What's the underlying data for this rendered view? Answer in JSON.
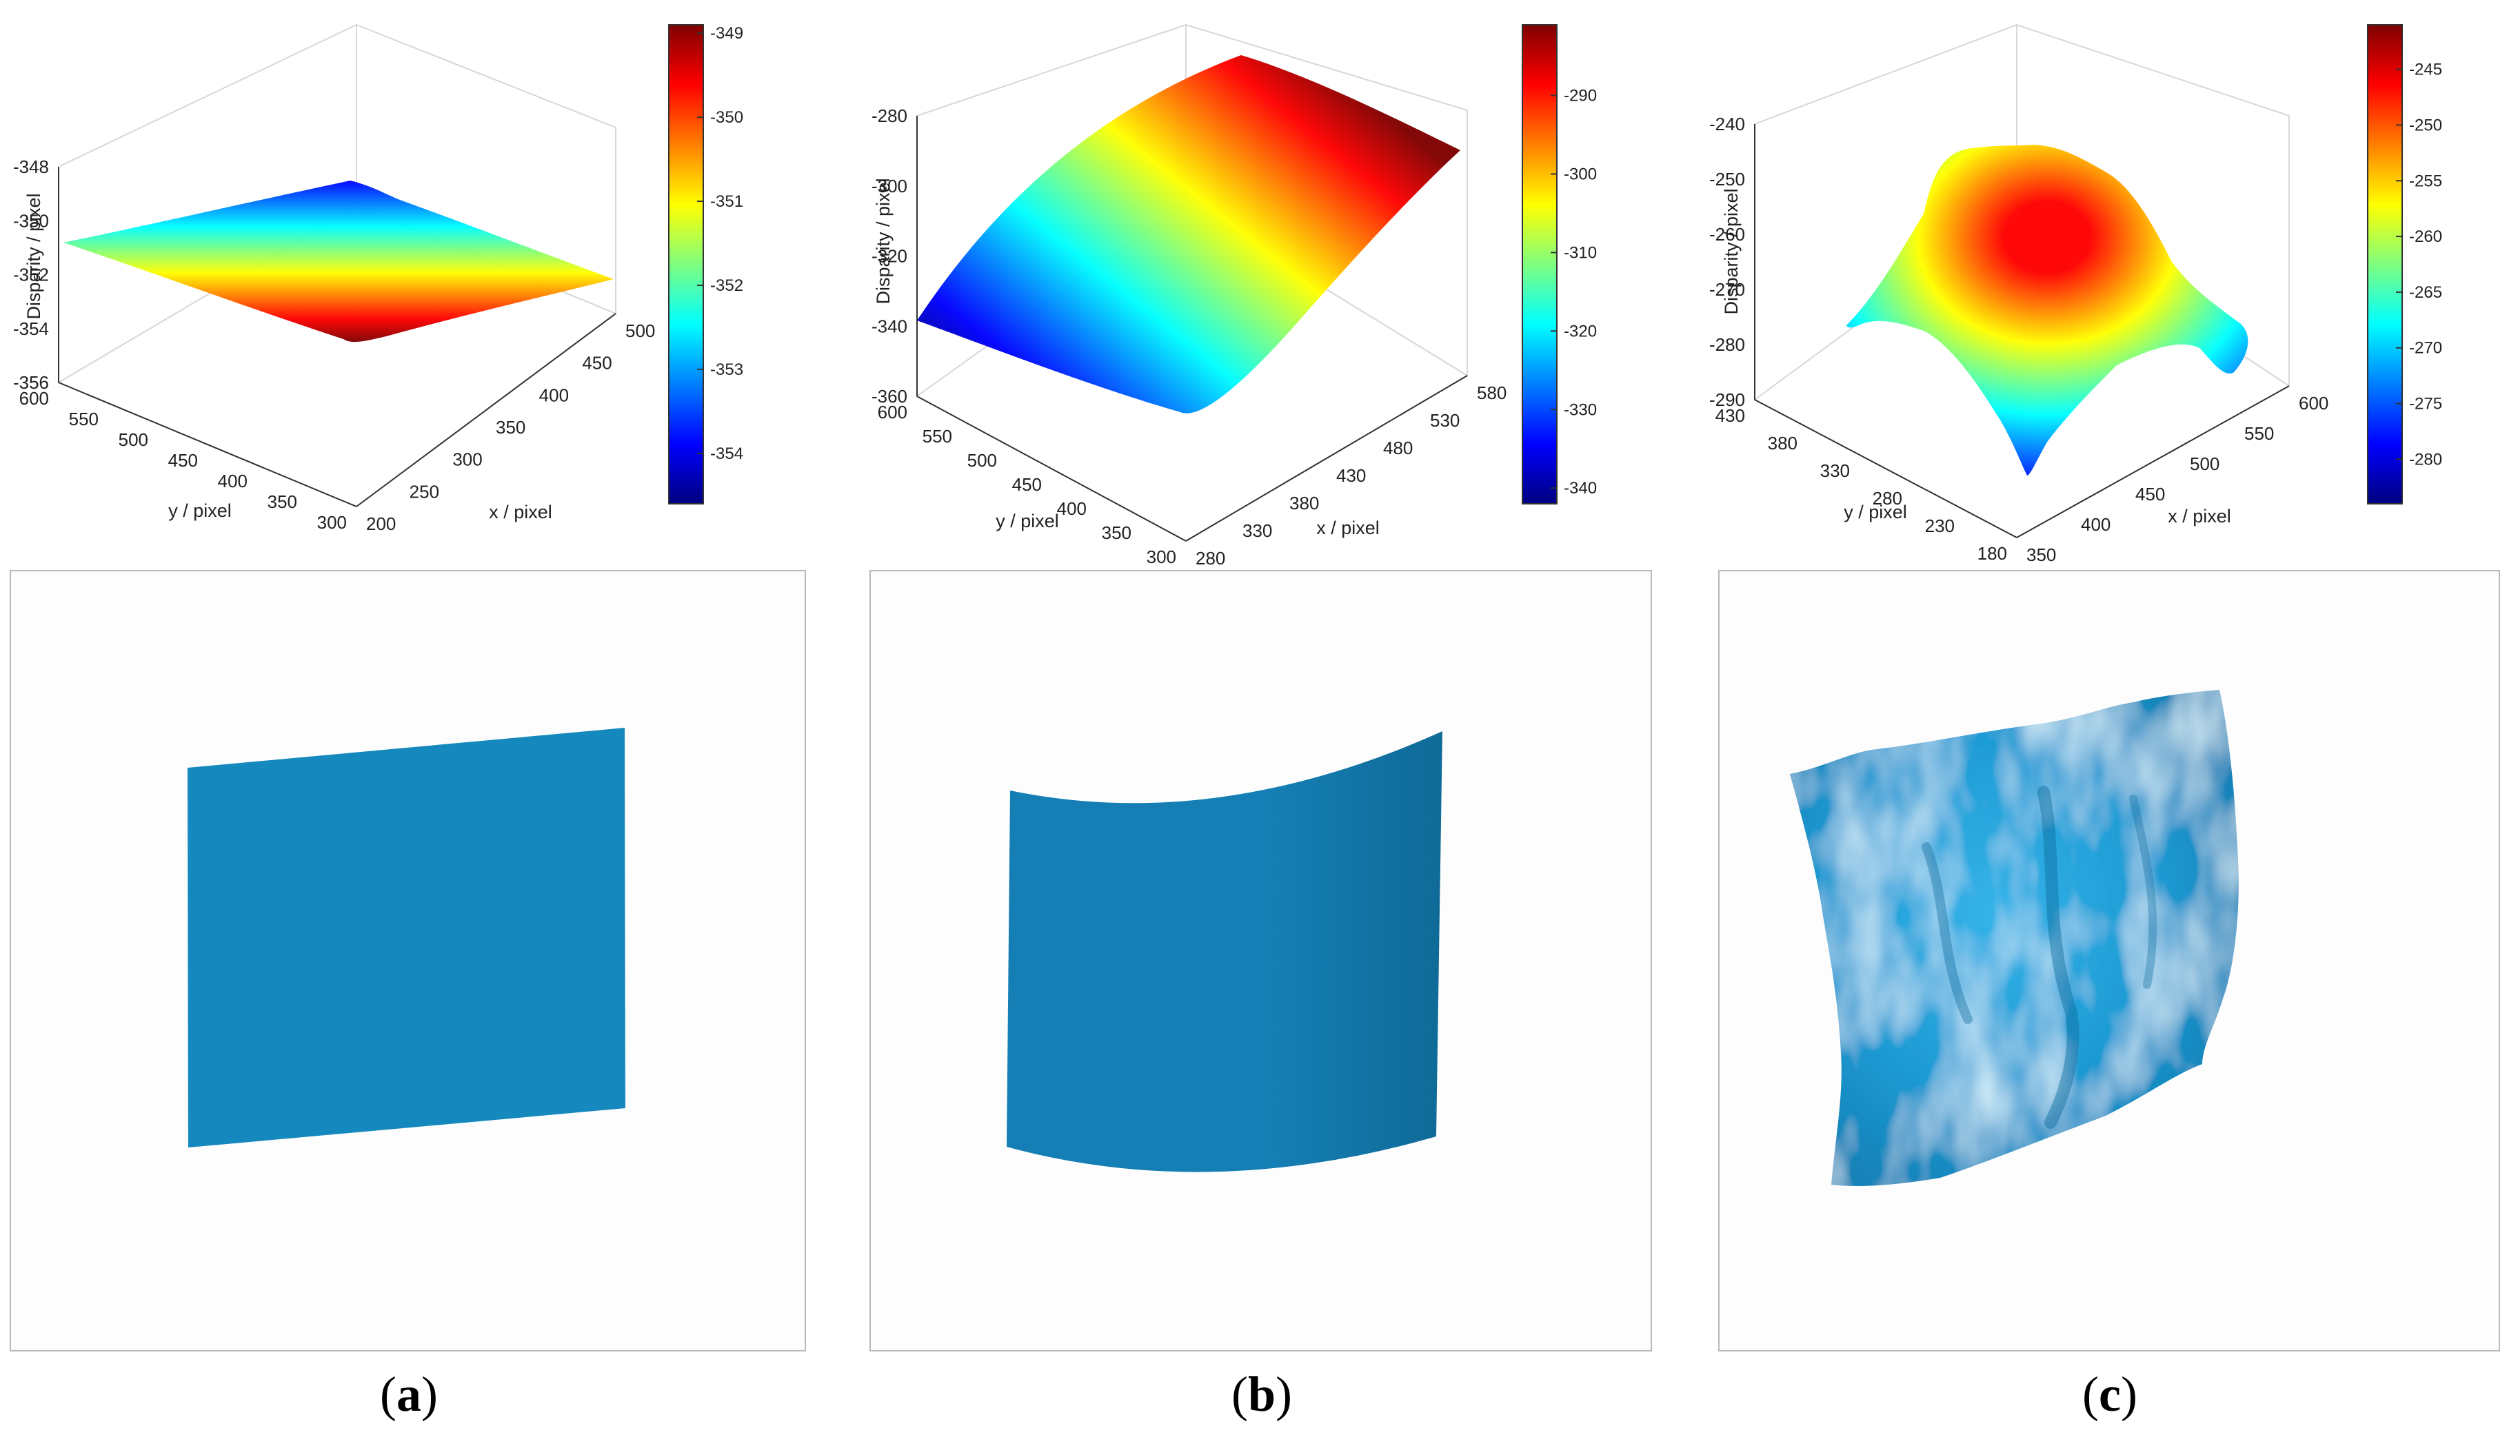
{
  "colormap": [
    "#00007f",
    "#0000ff",
    "#007fff",
    "#00ffff",
    "#7fff7f",
    "#ffff00",
    "#ff7f00",
    "#ff0000",
    "#7f0000"
  ],
  "render_color": "#1589bd",
  "chart_data": [
    {
      "type": "surface",
      "panel": "a",
      "zlabel": "Disparity / pixel",
      "xlabel": "x / pixel",
      "ylabel": "y / pixel",
      "xticks": [
        "200",
        "250",
        "300",
        "350",
        "400",
        "450",
        "500"
      ],
      "yticks": [
        "300",
        "350",
        "400",
        "450",
        "500",
        "550",
        "600"
      ],
      "zticks": [
        "-348",
        "-350",
        "-352",
        "-354",
        "-356"
      ],
      "xlim": [
        200,
        500
      ],
      "ylim": [
        300,
        600
      ],
      "zlim": [
        -356,
        -348
      ],
      "colorbar_ticks": [
        "-349",
        "-350",
        "-351",
        "-352",
        "-353",
        "-354"
      ],
      "colorbar_range": [
        -354.6,
        -348.9
      ],
      "surface_description": "tilted plane"
    },
    {
      "type": "surface",
      "panel": "b",
      "zlabel": "Disparity / pixel",
      "xlabel": "x / pixel",
      "ylabel": "y / pixel",
      "xticks": [
        "280",
        "330",
        "380",
        "430",
        "480",
        "530",
        "580"
      ],
      "yticks": [
        "300",
        "350",
        "400",
        "450",
        "500",
        "550",
        "600"
      ],
      "zticks": [
        "-280",
        "-300",
        "-320",
        "-340",
        "-360"
      ],
      "xlim": [
        280,
        580
      ],
      "ylim": [
        300,
        600
      ],
      "zlim": [
        -360,
        -280
      ],
      "colorbar_ticks": [
        "-290",
        "-300",
        "-310",
        "-320",
        "-330",
        "-340"
      ],
      "colorbar_range": [
        -342,
        -281
      ],
      "surface_description": "cylindrical"
    },
    {
      "type": "surface",
      "panel": "c",
      "zlabel": "Disparity / pixel",
      "xlabel": "x / pixel",
      "ylabel": "y / pixel",
      "xticks": [
        "350",
        "400",
        "450",
        "500",
        "550",
        "600"
      ],
      "yticks": [
        "180",
        "230",
        "280",
        "330",
        "380",
        "430"
      ],
      "zticks": [
        "-240",
        "-250",
        "-260",
        "-270",
        "-280",
        "-290"
      ],
      "xlim": [
        350,
        620
      ],
      "ylim": [
        180,
        450
      ],
      "zlim": [
        -290,
        -240
      ],
      "colorbar_ticks": [
        "-245",
        "-250",
        "-255",
        "-260",
        "-265",
        "-270",
        "-275",
        "-280"
      ],
      "colorbar_range": [
        -284,
        -241
      ],
      "surface_description": "irregular dome"
    }
  ],
  "captions": [
    {
      "open": "(",
      "letter": "a",
      "close": ")"
    },
    {
      "open": "(",
      "letter": "b",
      "close": ")"
    },
    {
      "open": "(",
      "letter": "c",
      "close": ")"
    }
  ]
}
